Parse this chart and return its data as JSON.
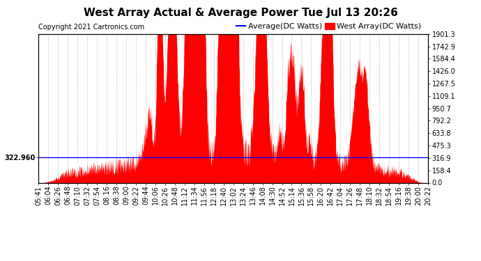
{
  "title": "West Array Actual & Average Power Tue Jul 13 20:26",
  "copyright": "Copyright 2021 Cartronics.com",
  "legend_avg": "Average(DC Watts)",
  "legend_west": "West Array(DC Watts)",
  "legend_avg_color": "blue",
  "legend_west_color": "red",
  "avg_value": 322.96,
  "ymax": 1901.3,
  "yticks_right": [
    0.0,
    158.4,
    316.9,
    475.3,
    633.8,
    792.2,
    950.7,
    1109.1,
    1267.5,
    1426.0,
    1584.4,
    1742.9,
    1901.3
  ],
  "ytick_labels_right": [
    "0.0",
    "158.4",
    "316.9",
    "475.3",
    "633.8",
    "792.2",
    "950.7",
    "1109.1",
    "1267.5",
    "1426.0",
    "1584.4",
    "1742.9",
    "1901.3"
  ],
  "left_ytick_val": 322.96,
  "left_ytick_label": "322.960",
  "background_color": "#ffffff",
  "plot_bg_color": "#ffffff",
  "grid_color": "#aaaaaa",
  "fill_color": "red",
  "avg_line_color": "blue",
  "title_fontsize": 11,
  "copyright_fontsize": 7,
  "tick_fontsize": 7,
  "xtick_labels": [
    "05:41",
    "06:04",
    "06:26",
    "06:48",
    "07:10",
    "07:32",
    "07:54",
    "08:16",
    "08:38",
    "09:00",
    "09:22",
    "09:44",
    "10:06",
    "10:26",
    "10:48",
    "11:12",
    "11:34",
    "11:56",
    "12:18",
    "12:40",
    "13:02",
    "13:24",
    "13:46",
    "14:08",
    "14:30",
    "14:52",
    "15:14",
    "15:36",
    "15:58",
    "16:20",
    "16:42",
    "17:04",
    "17:26",
    "17:48",
    "18:10",
    "18:32",
    "18:54",
    "19:16",
    "19:38",
    "20:00",
    "20:22"
  ]
}
